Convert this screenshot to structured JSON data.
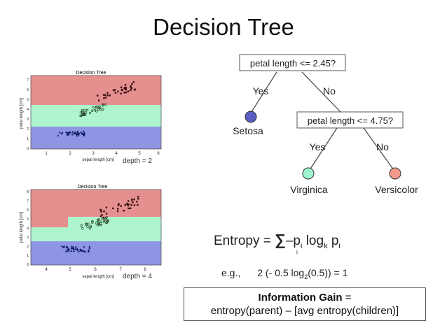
{
  "title": "Decision Tree",
  "plots": [
    {
      "title": "Decision Tree",
      "depth_label": "depth = 2",
      "xlabel": "sepal length [cm]",
      "ylabel": "petal length [cm]",
      "x_ticks": [
        "1",
        "2",
        "3",
        "4",
        "5",
        "6"
      ],
      "y_ticks": [
        "0",
        "1",
        "2",
        "3",
        "4",
        "5",
        "6",
        "7"
      ],
      "region_colors": [
        "#e58f8f",
        "#aef5cf",
        "#8f95e2"
      ]
    },
    {
      "title": "Decision Tree",
      "depth_label": "depth = 4",
      "xlabel": "sepal length [cm]",
      "ylabel": "petal length [cm]",
      "x_ticks": [
        "4",
        "5",
        "6",
        "7",
        "8"
      ],
      "y_ticks": [
        "0",
        "1",
        "2",
        "3",
        "4",
        "5",
        "6",
        "7",
        "8"
      ],
      "region_colors": [
        "#e58f8f",
        "#aef5cf",
        "#8f95e2"
      ]
    }
  ],
  "tree": {
    "root_question": "petal length <= 2.45?",
    "root_yes": "Yes",
    "root_no": "No",
    "leaf_setosa": "Setosa",
    "inner_question": "petal length <= 4.75?",
    "inner_yes": "Yes",
    "inner_no": "No",
    "leaf_virginica": "Virginica",
    "leaf_versicolor": "Versicolor",
    "colors": {
      "setosa": "#5a5ec0",
      "virginica": "#9ef5cf",
      "versicolor": "#f29a8c"
    }
  },
  "entropy": {
    "lhs": "Entropy = ",
    "sum": "∑",
    "sub_i": "i",
    "rhs_1": "–p",
    "rhs_1_sub": "i",
    "rhs_2": " log",
    "rhs_2_sub": "k",
    "rhs_3": " p",
    "rhs_3_sub": "i"
  },
  "example": {
    "prefix": "e.g.,",
    "expr_1": "2 (- 0.5 log",
    "expr_sub": "2",
    "expr_2": "(0.5)) = 1"
  },
  "info_gain": {
    "bold": "Information Gain",
    "eq": " =",
    "formula": "entropy(parent) – [avg entropy(children)]"
  }
}
